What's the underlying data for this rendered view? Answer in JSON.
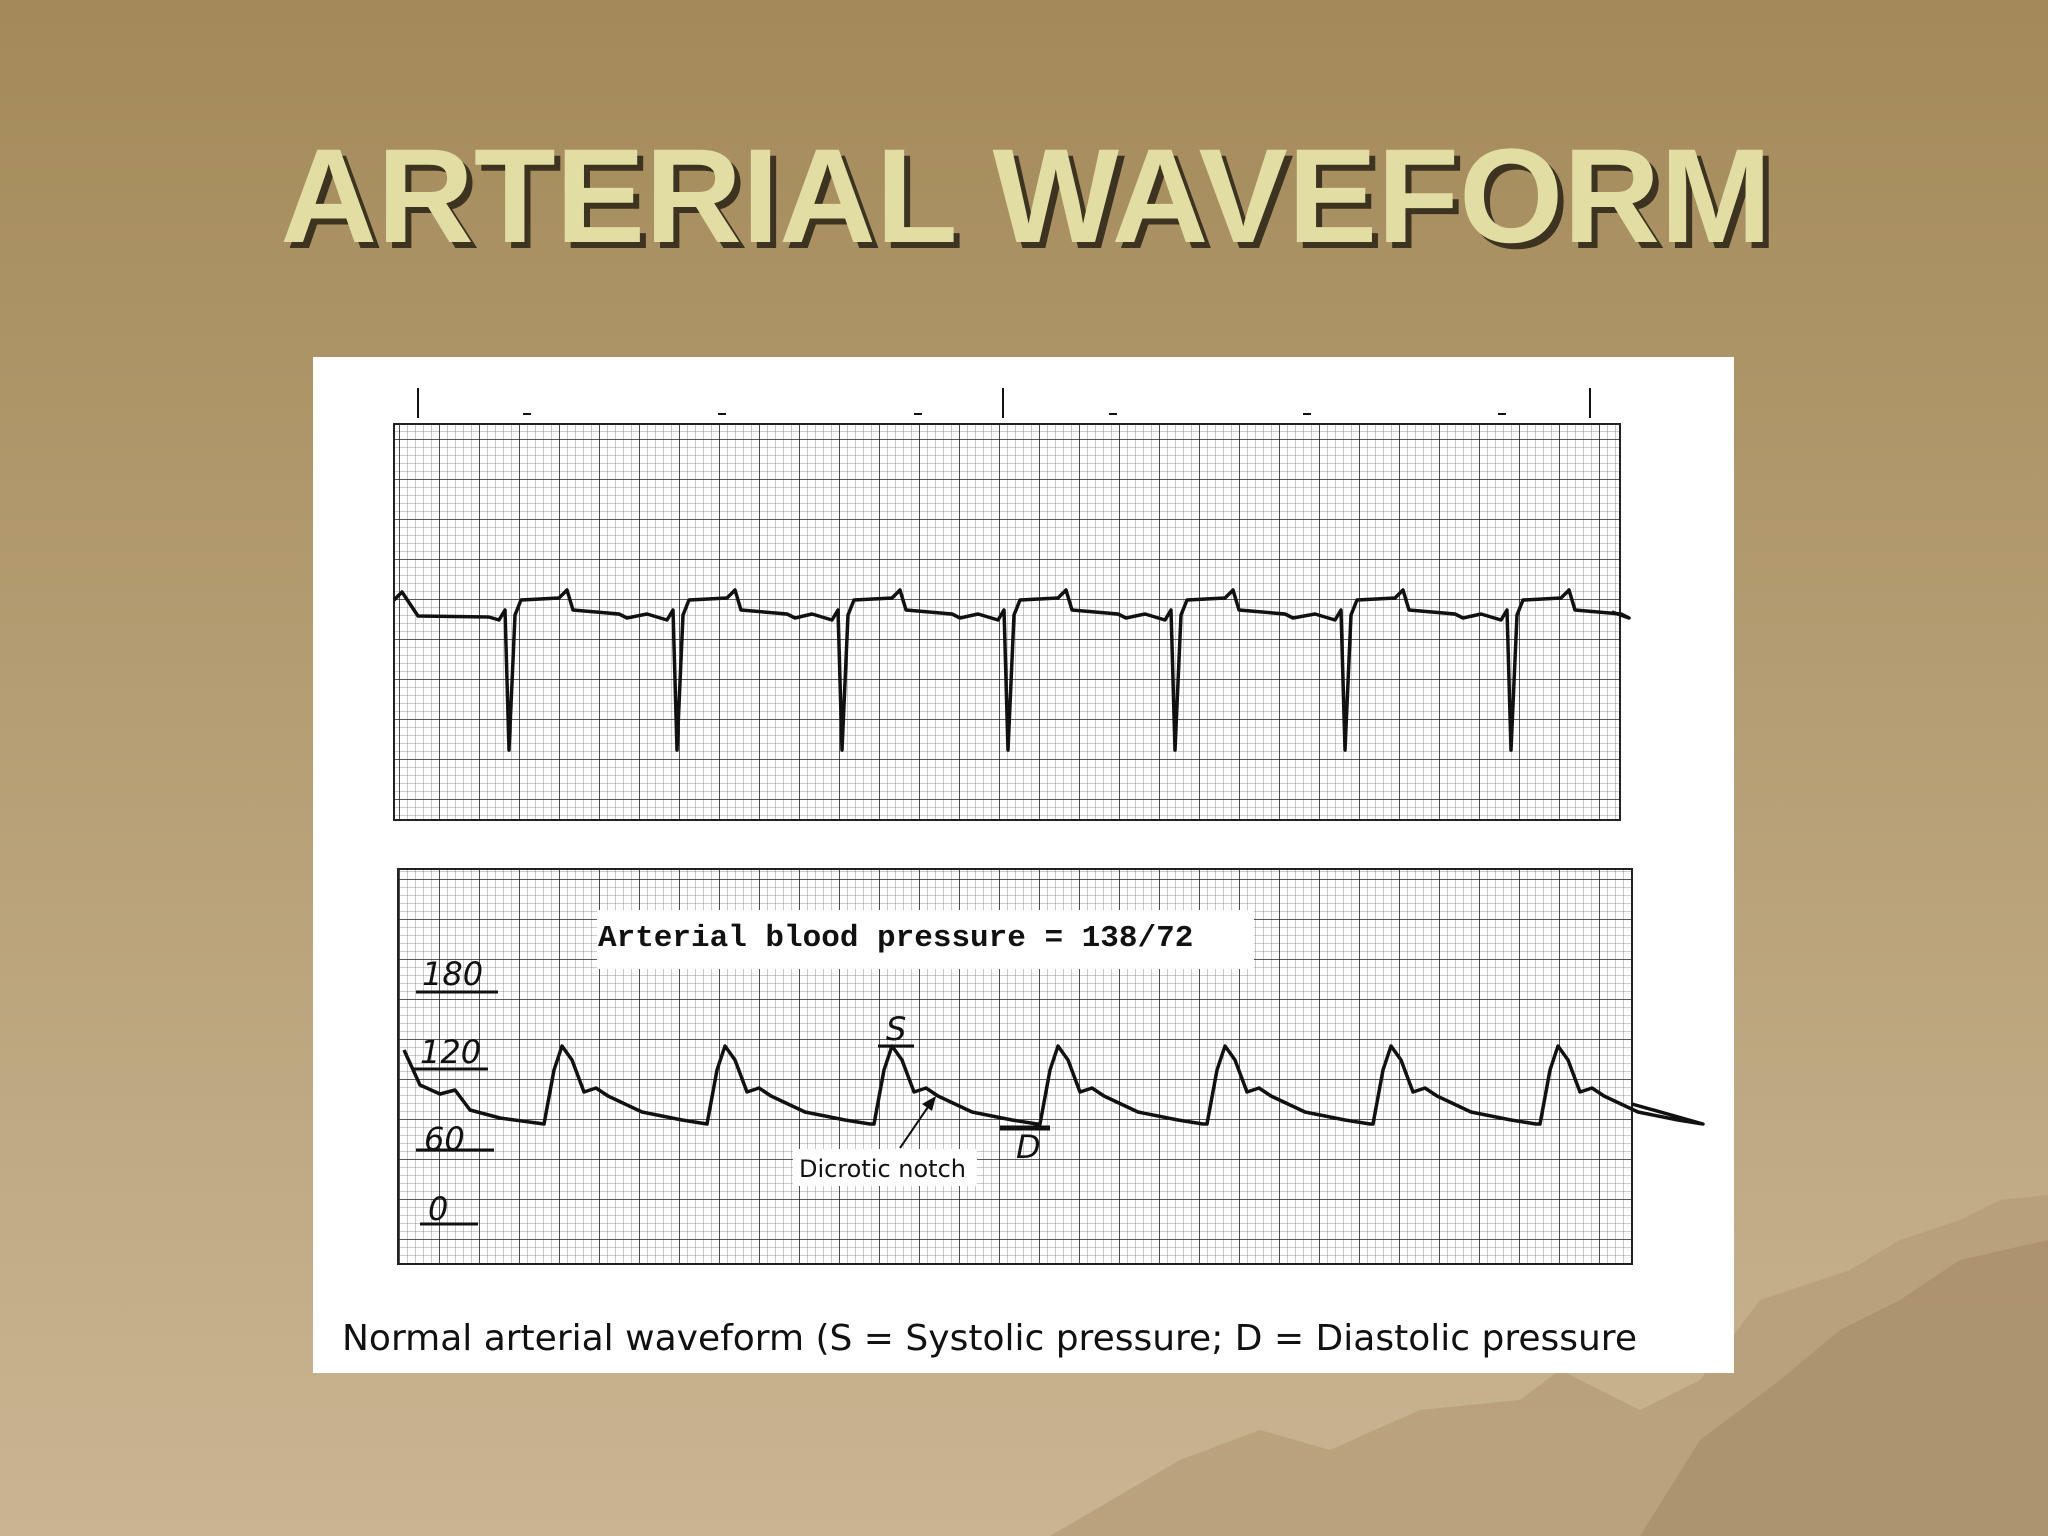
{
  "title": "ARTERIAL WAVEFORM",
  "figure": {
    "pressure_label": "Arterial blood pressure = 138/72",
    "scale_labels": [
      "180",
      "120",
      "60",
      "0"
    ],
    "systolic_mark": "S",
    "diastolic_mark": "D",
    "notch_label": "Dicrotic notch",
    "caption": "Normal arterial waveform (S = Systolic pressure; D = Diastolic pressure"
  }
}
